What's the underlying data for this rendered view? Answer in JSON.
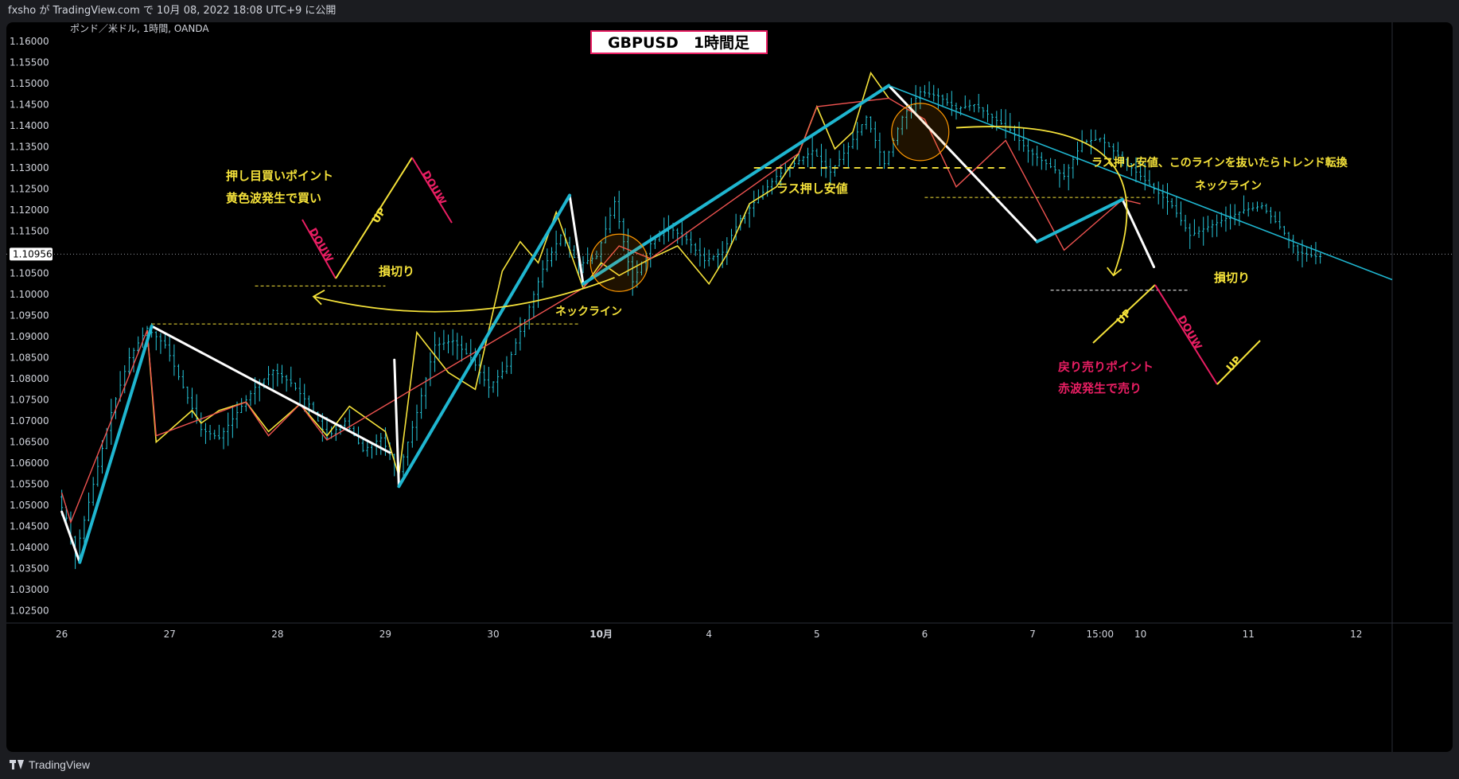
{
  "header": {
    "text": "fxsho が TradingView.com で 10月 08, 2022 18:08 UTC+9 に公開"
  },
  "footer": {
    "brand": "TradingView"
  },
  "chart_data": {
    "type": "candlestick",
    "symbol_label": "ポンド／米ドル, 1時間, OANDA",
    "title": "GBPUSD　1時間足",
    "current_price": "1.10956",
    "ylim": [
      1.0225,
      1.1645
    ],
    "y_ticks": [
      "1.16000",
      "1.15500",
      "1.15000",
      "1.14500",
      "1.14000",
      "1.13500",
      "1.13000",
      "1.12500",
      "1.12000",
      "1.11500",
      "1.11000",
      "1.10500",
      "1.10000",
      "1.09500",
      "1.09000",
      "1.08500",
      "1.08000",
      "1.07500",
      "1.07000",
      "1.06500",
      "1.06000",
      "1.05500",
      "1.05000",
      "1.04500",
      "1.04000",
      "1.03500",
      "1.03000",
      "1.02500"
    ],
    "x_ticks": [
      {
        "label": "26",
        "t": 0
      },
      {
        "label": "27",
        "t": 24
      },
      {
        "label": "28",
        "t": 48
      },
      {
        "label": "29",
        "t": 72
      },
      {
        "label": "30",
        "t": 96
      },
      {
        "label": "10月",
        "t": 120
      },
      {
        "label": "4",
        "t": 144
      },
      {
        "label": "5",
        "t": 168
      },
      {
        "label": "6",
        "t": 192
      },
      {
        "label": "7",
        "t": 216
      },
      {
        "label": "15:00",
        "t": 231
      },
      {
        "label": "10",
        "t": 240
      },
      {
        "label": "11",
        "t": 264
      },
      {
        "label": "12",
        "t": 288
      }
    ],
    "xlim": [
      -1,
      296
    ],
    "price_path": [
      [
        0,
        1.052
      ],
      [
        2,
        1.047
      ],
      [
        4,
        1.038
      ],
      [
        8,
        1.055
      ],
      [
        12,
        1.072
      ],
      [
        16,
        1.085
      ],
      [
        20,
        1.092
      ],
      [
        24,
        1.088
      ],
      [
        28,
        1.078
      ],
      [
        32,
        1.068
      ],
      [
        36,
        1.066
      ],
      [
        40,
        1.072
      ],
      [
        44,
        1.078
      ],
      [
        48,
        1.082
      ],
      [
        52,
        1.079
      ],
      [
        56,
        1.074
      ],
      [
        60,
        1.066
      ],
      [
        64,
        1.07
      ],
      [
        68,
        1.063
      ],
      [
        72,
        1.066
      ],
      [
        76,
        1.058
      ],
      [
        80,
        1.072
      ],
      [
        84,
        1.088
      ],
      [
        88,
        1.089
      ],
      [
        92,
        1.085
      ],
      [
        96,
        1.078
      ],
      [
        100,
        1.083
      ],
      [
        104,
        1.094
      ],
      [
        108,
        1.106
      ],
      [
        112,
        1.114
      ],
      [
        116,
        1.107
      ],
      [
        120,
        1.109
      ],
      [
        124,
        1.122
      ],
      [
        128,
        1.103
      ],
      [
        132,
        1.112
      ],
      [
        136,
        1.116
      ],
      [
        140,
        1.113
      ],
      [
        144,
        1.108
      ],
      [
        148,
        1.11
      ],
      [
        152,
        1.118
      ],
      [
        156,
        1.123
      ],
      [
        160,
        1.128
      ],
      [
        164,
        1.131
      ],
      [
        168,
        1.134
      ],
      [
        172,
        1.129
      ],
      [
        176,
        1.135
      ],
      [
        180,
        1.142
      ],
      [
        184,
        1.131
      ],
      [
        188,
        1.142
      ],
      [
        192,
        1.148
      ],
      [
        196,
        1.147
      ],
      [
        200,
        1.144
      ],
      [
        204,
        1.145
      ],
      [
        208,
        1.142
      ],
      [
        212,
        1.139
      ],
      [
        216,
        1.134
      ],
      [
        220,
        1.131
      ],
      [
        224,
        1.128
      ],
      [
        228,
        1.136
      ],
      [
        232,
        1.137
      ],
      [
        236,
        1.133
      ],
      [
        240,
        1.129
      ],
      [
        244,
        1.125
      ],
      [
        248,
        1.121
      ],
      [
        252,
        1.114
      ],
      [
        256,
        1.116
      ],
      [
        260,
        1.118
      ],
      [
        264,
        1.12
      ],
      [
        268,
        1.121
      ],
      [
        272,
        1.116
      ],
      [
        276,
        1.11
      ],
      [
        280,
        1.109
      ]
    ],
    "zigzag_yellow": [
      [
        19,
        1.0915
      ],
      [
        21,
        1.065
      ],
      [
        29,
        1.0725
      ],
      [
        31,
        1.0695
      ],
      [
        35,
        1.0725
      ],
      [
        41,
        1.0745
      ],
      [
        46,
        1.0675
      ],
      [
        53,
        1.074
      ],
      [
        59,
        1.0665
      ],
      [
        64,
        1.0735
      ],
      [
        72,
        1.0675
      ],
      [
        75,
        1.057
      ],
      [
        79,
        1.091
      ],
      [
        86,
        1.0815
      ],
      [
        92,
        1.0775
      ],
      [
        98,
        1.1055
      ],
      [
        102,
        1.1125
      ],
      [
        106,
        1.1075
      ],
      [
        110,
        1.1195
      ],
      [
        116,
        1.1015
      ],
      [
        120,
        1.1075
      ],
      [
        124,
        1.1045
      ],
      [
        131,
        1.1085
      ],
      [
        137,
        1.1115
      ],
      [
        144,
        1.1025
      ],
      [
        148,
        1.1095
      ],
      [
        153,
        1.1215
      ],
      [
        159,
        1.1255
      ],
      [
        164,
        1.1335
      ],
      [
        168,
        1.1445
      ],
      [
        172,
        1.1345
      ],
      [
        176,
        1.1385
      ],
      [
        180,
        1.1525
      ],
      [
        184,
        1.1465
      ]
    ],
    "zigzag_red": [
      [
        0,
        1.053
      ],
      [
        2,
        1.046
      ],
      [
        19,
        1.0915
      ],
      [
        21,
        1.0665
      ],
      [
        41,
        1.0745
      ],
      [
        46,
        1.0665
      ],
      [
        53,
        1.074
      ],
      [
        59,
        1.0655
      ],
      [
        116,
        1.1015
      ],
      [
        124,
        1.1115
      ],
      [
        131,
        1.1085
      ],
      [
        164,
        1.1335
      ],
      [
        168,
        1.1445
      ],
      [
        184,
        1.1465
      ],
      [
        192,
        1.1415
      ],
      [
        199,
        1.1255
      ],
      [
        210,
        1.1365
      ],
      [
        223,
        1.1105
      ],
      [
        236,
        1.1225
      ],
      [
        240,
        1.1215
      ]
    ],
    "zigzag_cyan": [
      [
        4,
        1.0365
      ],
      [
        20,
        1.0925
      ],
      [
        75,
        1.0545
      ],
      [
        113,
        1.1235
      ],
      [
        116,
        1.1025
      ],
      [
        151,
        1.1215
      ],
      [
        184,
        1.1485
      ],
      [
        204,
        1.1495
      ],
      [
        217,
        1.1125
      ],
      [
        236,
        1.1225
      ]
    ],
    "zigzag_white": [
      [
        0,
        1.0485
      ],
      [
        4,
        1.0365
      ],
      [
        20,
        1.0925
      ],
      [
        73,
        1.0625
      ],
      [
        113,
        1.1235
      ],
      [
        116,
        1.1025
      ],
      [
        204,
        1.1495
      ],
      [
        217,
        1.1125
      ],
      [
        236,
        1.1225
      ],
      [
        243,
        1.1065
      ]
    ],
    "trendline_cyan": [
      [
        184,
        1.1495
      ],
      [
        296,
        1.1035
      ]
    ],
    "annotations": {
      "buy_point": "押し目買いポイント",
      "buy_rule": "黄色波発生で買い",
      "sell_point": "戻り売りポイント",
      "sell_rule": "赤波発生で売り",
      "stop_loss_1": "損切り",
      "stop_loss_2": "損切り",
      "neckline_1": "ネックライン",
      "neckline_2": "ネックライン",
      "last_support": "ラス押し安値",
      "last_support_note": "ラス押し安値、このラインを抜いたらトレンド転換",
      "up_1": "UP",
      "down_1": "DOUW",
      "down_2": "DOUW",
      "up_2": "UP",
      "down_3": "DOUW",
      "up_3": "UP"
    },
    "colors": {
      "background": "#000000",
      "candle": "#26c6da",
      "yellow": "#f5e23a",
      "red": "#ef5350",
      "cyan": "#1fb6d0",
      "white": "#ffffff",
      "magenta": "#e91e63",
      "orange": "#ff9800",
      "axis_text": "#d1d4dc"
    }
  }
}
